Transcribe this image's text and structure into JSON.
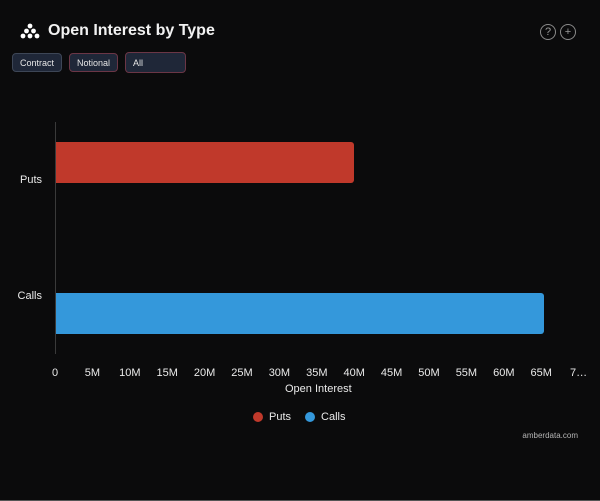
{
  "header": {
    "title": "Open Interest by Type",
    "logo_icon": "amberdata-logo-icon",
    "help_icon": "?",
    "add_icon": "+"
  },
  "controls": {
    "contract_label": "Contract",
    "notional_label": "Notional",
    "filter_value": "All"
  },
  "footer": {
    "credit": "amberdata.com"
  },
  "colors": {
    "puts": "#c0392b",
    "calls": "#3498db",
    "background": "#0b0b0c"
  },
  "chart_data": {
    "type": "bar",
    "orientation": "horizontal",
    "title": "Open Interest by Type",
    "categories": [
      "Puts",
      "Calls"
    ],
    "series": [
      {
        "name": "Puts",
        "values": [
          39.8
        ],
        "color": "#c0392b"
      },
      {
        "name": "Calls",
        "values": [
          65.2
        ],
        "color": "#3498db"
      }
    ],
    "values": [
      39800000,
      65200000
    ],
    "xlabel": "Open Interest",
    "ylabel": "",
    "xlim": [
      0,
      70000000
    ],
    "x_ticks": [
      "0",
      "5M",
      "10M",
      "15M",
      "20M",
      "25M",
      "30M",
      "35M",
      "40M",
      "45M",
      "50M",
      "55M",
      "60M",
      "65M",
      "7…"
    ],
    "legend": [
      "Puts",
      "Calls"
    ],
    "legend_position": "bottom",
    "grid": false
  }
}
